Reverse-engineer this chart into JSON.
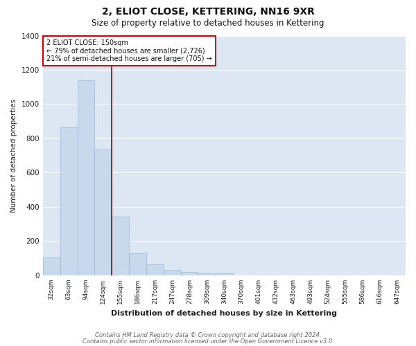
{
  "title": "2, ELIOT CLOSE, KETTERING, NN16 9XR",
  "subtitle": "Size of property relative to detached houses in Kettering",
  "xlabel": "Distribution of detached houses by size in Kettering",
  "ylabel": "Number of detached properties",
  "bar_color": "#c8d9ec",
  "bar_edge_color": "#9ab8d8",
  "background_color": "#dce7f3",
  "grid_color": "#ffffff",
  "fig_facecolor": "#ffffff",
  "categories": [
    "32sqm",
    "63sqm",
    "94sqm",
    "124sqm",
    "155sqm",
    "186sqm",
    "217sqm",
    "247sqm",
    "278sqm",
    "309sqm",
    "340sqm",
    "370sqm",
    "401sqm",
    "432sqm",
    "463sqm",
    "493sqm",
    "524sqm",
    "555sqm",
    "586sqm",
    "616sqm",
    "647sqm"
  ],
  "values": [
    105,
    865,
    1140,
    735,
    345,
    130,
    63,
    32,
    20,
    13,
    10,
    0,
    0,
    0,
    0,
    0,
    0,
    0,
    0,
    0,
    0
  ],
  "vline_color": "#cc0000",
  "vline_index": 4,
  "annotation_title": "2 ELIOT CLOSE: 150sqm",
  "annotation_line1": "← 79% of detached houses are smaller (2,726)",
  "annotation_line2": "21% of semi-detached houses are larger (705) →",
  "annotation_box_color": "#cc0000",
  "ylim": [
    0,
    1400
  ],
  "yticks": [
    0,
    200,
    400,
    600,
    800,
    1000,
    1200,
    1400
  ],
  "footer1": "Contains HM Land Registry data © Crown copyright and database right 2024.",
  "footer2": "Contains public sector information licensed under the Open Government Licence v3.0."
}
